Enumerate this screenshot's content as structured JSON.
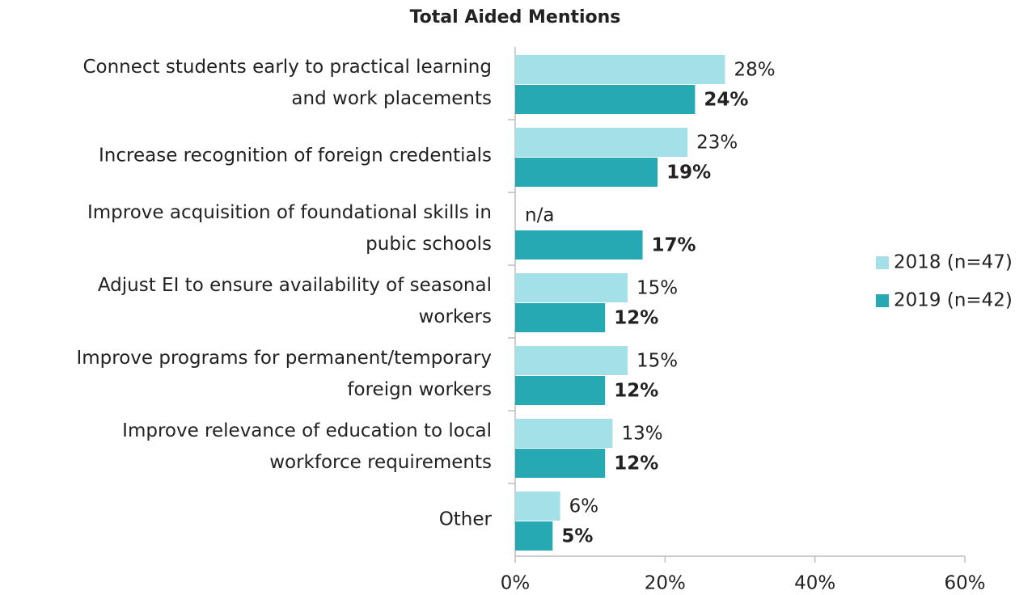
{
  "chart_data": {
    "type": "hbar",
    "title": "Total Aided Mentions",
    "categories": [
      [
        "Connect students early to practical learning",
        "and work placements"
      ],
      [
        "Increase recognition of foreign credentials"
      ],
      [
        "Improve acquisition of foundational skills in",
        "pubic schools"
      ],
      [
        "Adjust EI to ensure availability of seasonal",
        "workers"
      ],
      [
        "Improve programs for permanent/temporary",
        "foreign workers"
      ],
      [
        "Improve relevance of education to local",
        "workforce requirements"
      ],
      [
        "Other"
      ]
    ],
    "series": [
      {
        "name": "2018 (n=47)",
        "color": "#a3e0e7",
        "values": [
          28,
          23,
          null,
          15,
          15,
          13,
          6
        ],
        "value_labels": [
          "28%",
          "23%",
          "n/a",
          "15%",
          "15%",
          "13%",
          "6%"
        ]
      },
      {
        "name": "2019 (n=42)",
        "color": "#27a9b4",
        "values": [
          24,
          19,
          17,
          12,
          12,
          12,
          5
        ],
        "value_labels": [
          "24%",
          "19%",
          "17%",
          "12%",
          "12%",
          "12%",
          "5%"
        ],
        "bold_labels": true
      }
    ],
    "xlim": [
      0,
      60
    ],
    "xticks": [
      {
        "value": 0,
        "label": "0%"
      },
      {
        "value": 20,
        "label": "20%"
      },
      {
        "value": 40,
        "label": "40%"
      },
      {
        "value": 60,
        "label": "60%"
      }
    ],
    "legend": "right"
  }
}
